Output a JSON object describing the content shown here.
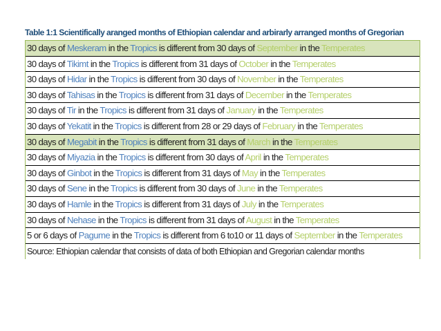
{
  "table": {
    "caption": "Table 1:1 Scientifically aranged months of Ethiopian calendar and arbirarly arranged months of Gregorian",
    "rows": [
      {
        "count": "30 days of",
        "eth_month": "Meskeram",
        "in_the": "in the",
        "tropics": "Tropics",
        "middle": "is different from 30 days of",
        "greg_month": "September",
        "in_the2": "in the",
        "temperates": "Temperates",
        "shaded": true
      },
      {
        "count": "30 days of",
        "eth_month": "Tikimt",
        "in_the": "in the",
        "tropics": "Tropics",
        "middle": "is different from 31 days of",
        "greg_month": "October",
        "in_the2": "in the",
        "temperates": "Temperates",
        "shaded": false
      },
      {
        "count": "30 days of",
        "eth_month": "Hidar",
        "in_the": "in the",
        "tropics": "Tropics",
        "middle": "is different from 30 days of",
        "greg_month": "November",
        "in_the2": "in the",
        "temperates": "Temperates",
        "shaded": false
      },
      {
        "count": "30 days of",
        "eth_month": "Tahisas",
        "in_the": "in the",
        "tropics": "Tropics",
        "middle": "is different from 31 days of",
        "greg_month": "December",
        "in_the2": "in the",
        "temperates": "Temperates",
        "shaded": false
      },
      {
        "count": "30 days of",
        "eth_month": "Tir",
        "in_the": "in the",
        "tropics": "Tropics",
        "middle": "is different from 31 days of",
        "greg_month": "January",
        "in_the2": "in the",
        "temperates": "Temperates",
        "shaded": false
      },
      {
        "count": "30 days of",
        "eth_month": "Yekatit",
        "in_the": "in the",
        "tropics": "Tropics",
        "middle": "is different from 28 or 29 days of",
        "greg_month": "February",
        "in_the2": "in the",
        "temperates": "Temperates",
        "shaded": false
      },
      {
        "count": "30 days of",
        "eth_month": "Megabit",
        "in_the": "in the",
        "tropics": "Tropics",
        "middle": "is different from 31 days of",
        "greg_month": "March",
        "in_the2": "in the",
        "temperates": "Temperates",
        "shaded": true
      },
      {
        "count": "30 days of",
        "eth_month": "Miyazia",
        "in_the": "in the",
        "tropics": "Tropics",
        "middle": "is different from 30 days of",
        "greg_month": "April",
        "in_the2": "in the",
        "temperates": "Temperates",
        "shaded": false
      },
      {
        "count": "30 days of",
        "eth_month": "Ginbot",
        "in_the": "in the",
        "tropics": "Tropics",
        "middle": "is different from 31 days of",
        "greg_month": "May",
        "in_the2": "in the",
        "temperates": "Temperates",
        "shaded": false
      },
      {
        "count": "30 days of",
        "eth_month": "Sene",
        "in_the": "in the",
        "tropics": "Tropics",
        "middle": "is different from 30 days of",
        "greg_month": "June",
        "in_the2": "in the",
        "temperates": "Temperates",
        "shaded": false
      },
      {
        "count": "30 days of",
        "eth_month": "Hamle",
        "in_the": "in the",
        "tropics": "Tropics",
        "middle": "is different from 31 days of",
        "greg_month": "July",
        "in_the2": "in the",
        "temperates": "Temperates",
        "shaded": false
      },
      {
        "count": "30 days of",
        "eth_month": "Nehase",
        "in_the": "in the",
        "tropics": "Tropics",
        "middle": "is different from 31 days of",
        "greg_month": "August",
        "in_the2": "in the",
        "temperates": "Temperates",
        "shaded": false
      },
      {
        "count": "5 or 6 days of",
        "eth_month": "Pagume",
        "in_the": "in the",
        "tropics": "Tropics",
        "middle": "is different from 6 to10 or 11 days of",
        "greg_month": "September",
        "in_the2": "in the",
        "temperates": "Temperates",
        "shaded": false
      }
    ],
    "source": "Source: Ethiopian calendar that consists of data of both Ethiopian and Gregorian calendar months"
  },
  "colors": {
    "caption": "#1f4e79",
    "ethiopian_terms": "#4f81bd",
    "gregorian_terms": "#b4cf6a",
    "shaded_row": "#d8e4bc"
  }
}
